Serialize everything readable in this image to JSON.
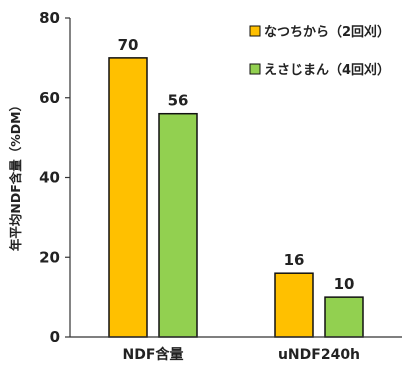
{
  "chart_data": {
    "type": "bar",
    "title": "",
    "xlabel": "",
    "ylabel": "年平均NDF含量（%DM）",
    "ylim": [
      0,
      80
    ],
    "yticks": [
      0,
      20,
      40,
      60,
      80
    ],
    "categories": [
      "NDF含量",
      "uNDF240h"
    ],
    "series": [
      {
        "name": "なつちから（2回刈）",
        "color": "#FFC000",
        "values": [
          70,
          16
        ]
      },
      {
        "name": "えさじまん（4回刈）",
        "color": "#92D050",
        "values": [
          56,
          10
        ]
      }
    ],
    "data_labels": true,
    "grid": false,
    "legend": "top-right",
    "bar_outline": "#111111"
  }
}
